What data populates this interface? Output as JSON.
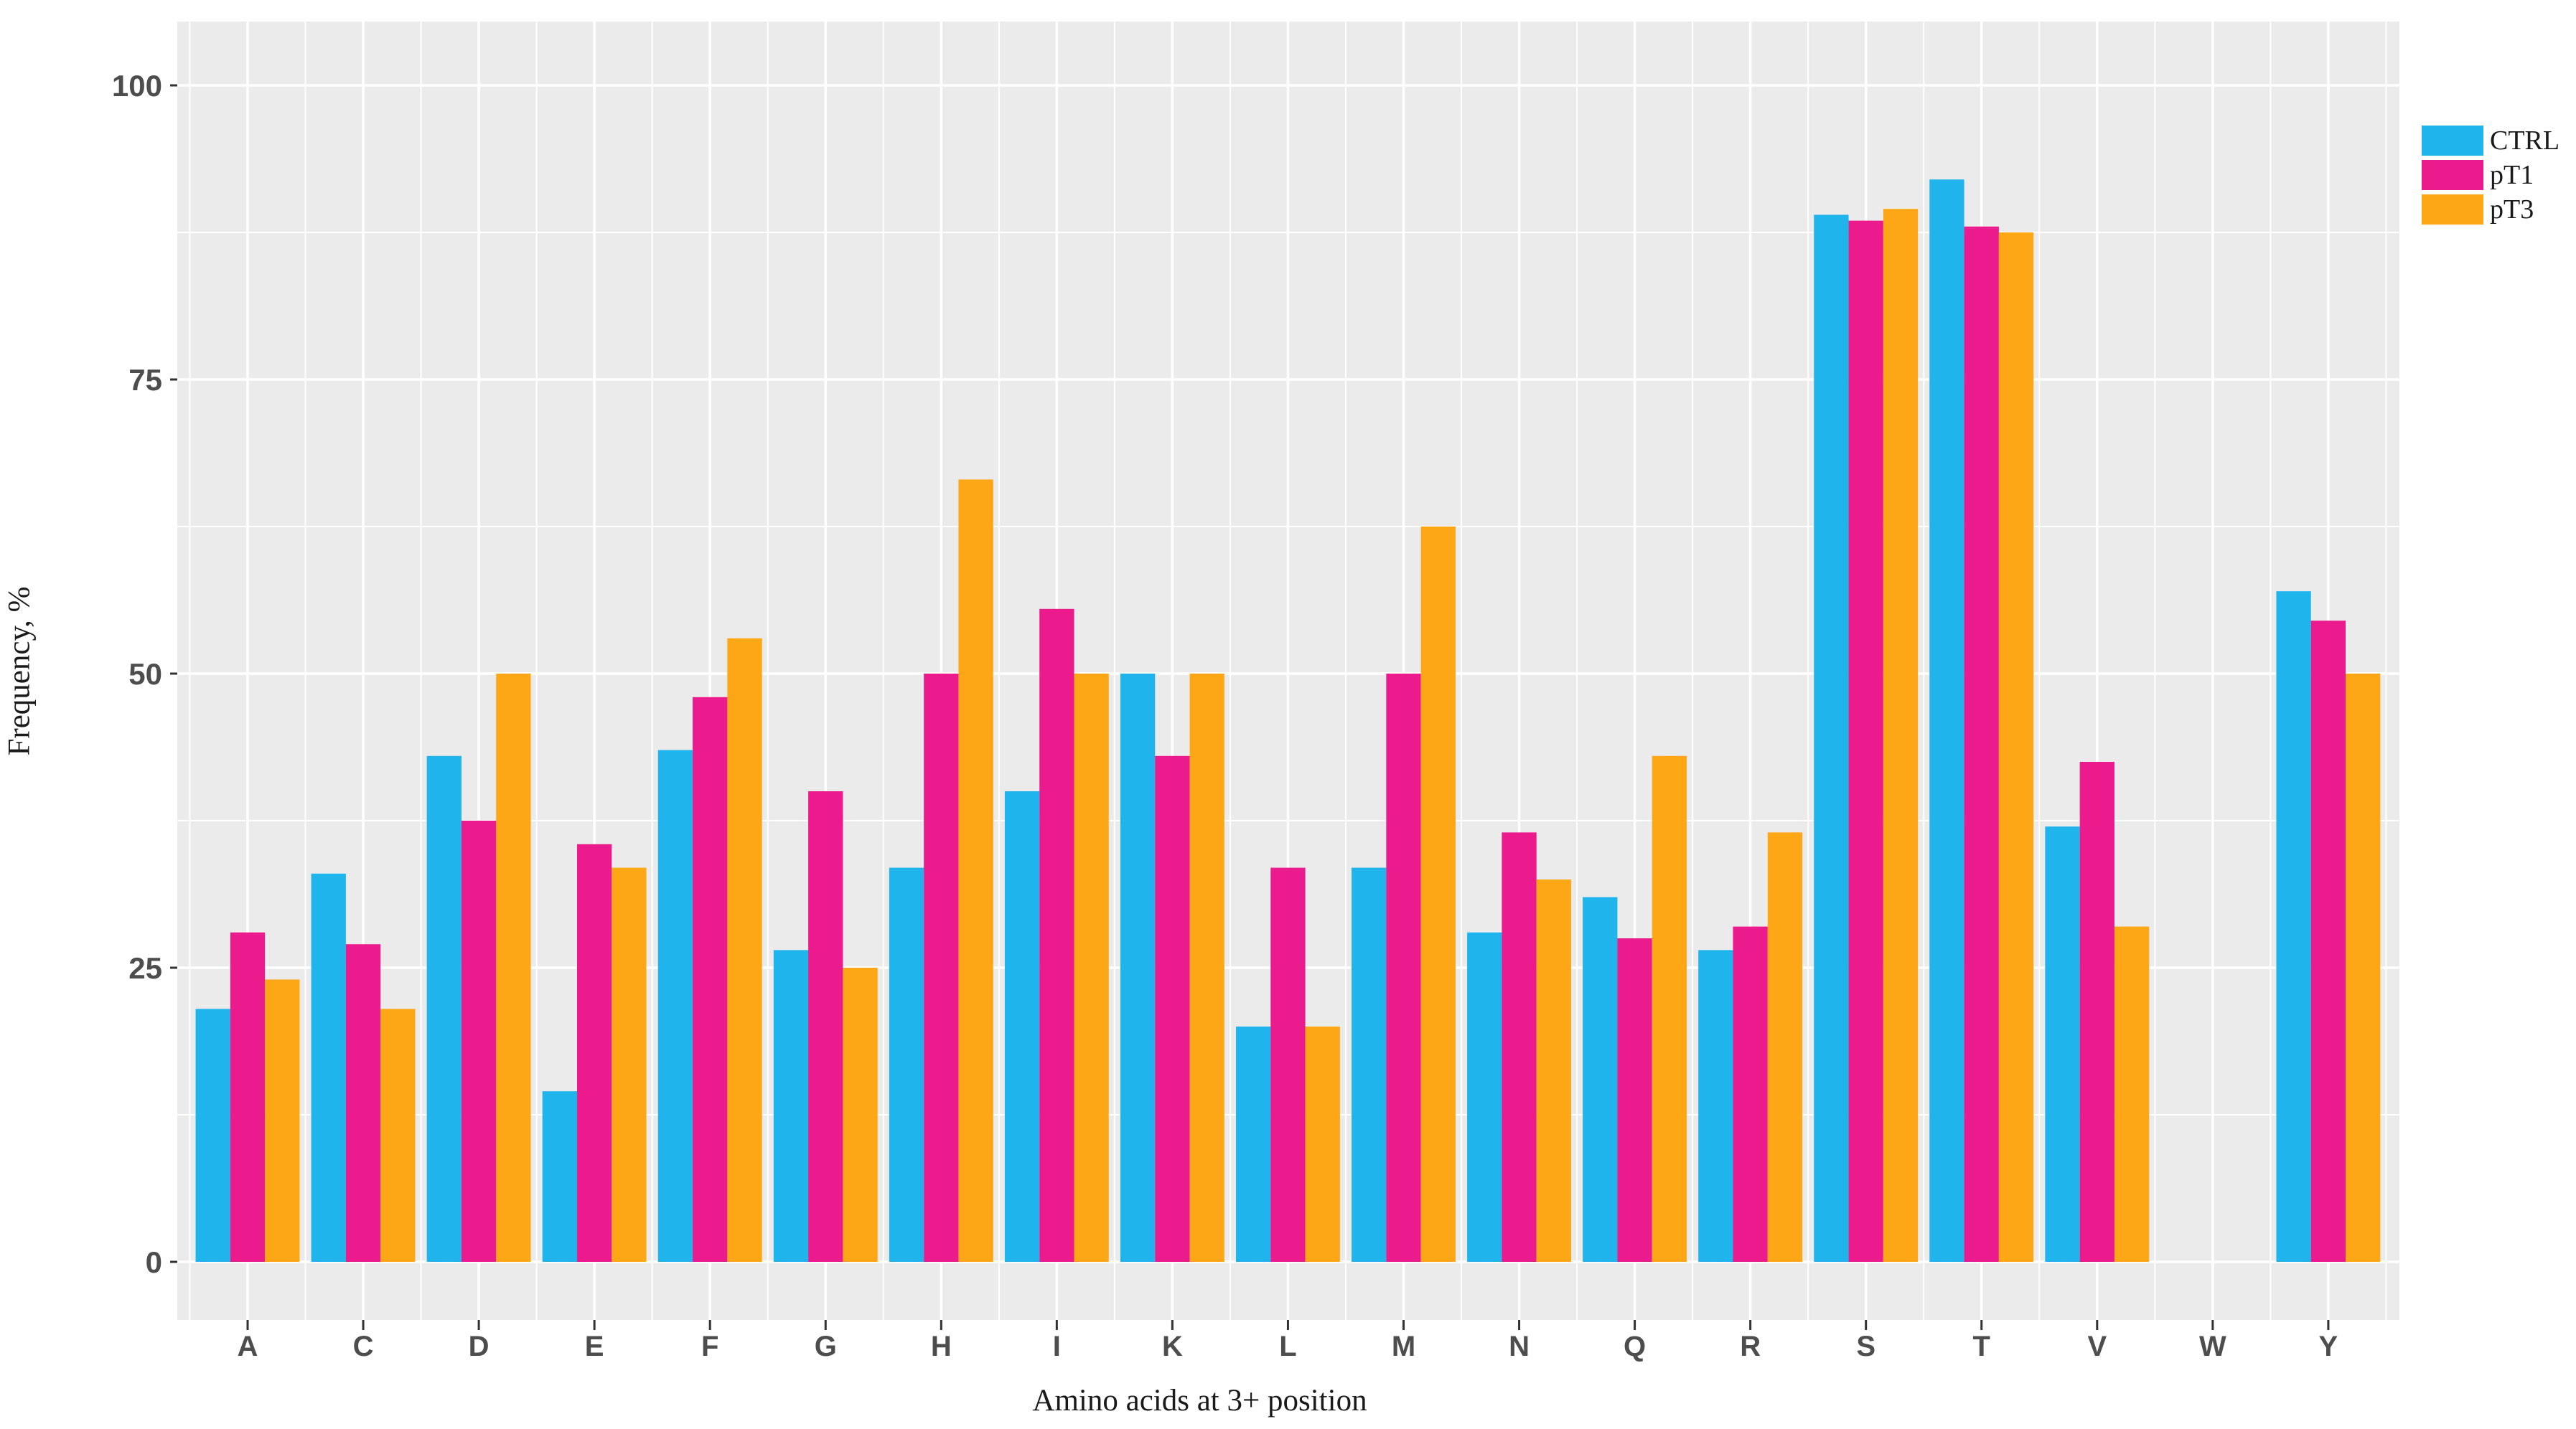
{
  "figure": {
    "background": "#ffffff",
    "panel_background": "#ebebeb",
    "gridline_major_color": "#ffffff",
    "gridline_minor_color": "#ffffff",
    "axis_tick_color": "#333333",
    "tick_label_color": "#4d4d4d",
    "axis_title_color": "#1a1a1a"
  },
  "chart_data": {
    "type": "bar",
    "title": "",
    "xlabel": "Amino acids at 3+ position",
    "ylabel": "Frequency, %",
    "categories": [
      "A",
      "C",
      "D",
      "E",
      "F",
      "G",
      "H",
      "I",
      "K",
      "L",
      "M",
      "N",
      "Q",
      "R",
      "S",
      "T",
      "V",
      "W",
      "Y"
    ],
    "series": [
      {
        "name": "CTRL",
        "color": "#1fb4ec",
        "values": [
          21.5,
          33,
          43,
          14.5,
          43.5,
          26.5,
          33.5,
          40,
          50,
          20,
          33.5,
          28,
          31,
          26.5,
          89,
          92,
          37,
          0,
          57
        ]
      },
      {
        "name": "pT1",
        "color": "#ec1b8d",
        "values": [
          28,
          27,
          37.5,
          35.5,
          48,
          40,
          50,
          55.5,
          43,
          33.5,
          50,
          36.5,
          27.5,
          28.5,
          88.5,
          88,
          42.5,
          0,
          54.5
        ]
      },
      {
        "name": "pT3",
        "color": "#fda616",
        "values": [
          24,
          21.5,
          50,
          33.5,
          53,
          25,
          66.5,
          50,
          50,
          20,
          62.5,
          32.5,
          43,
          36.5,
          89.5,
          87.5,
          28.5,
          0,
          50
        ]
      }
    ],
    "yticks": [
      0,
      25,
      50,
      75,
      100
    ],
    "ylim": [
      0,
      105
    ],
    "grid": "major and minor white gridlines on gray panel",
    "legend_position": "top-right outside panel"
  }
}
